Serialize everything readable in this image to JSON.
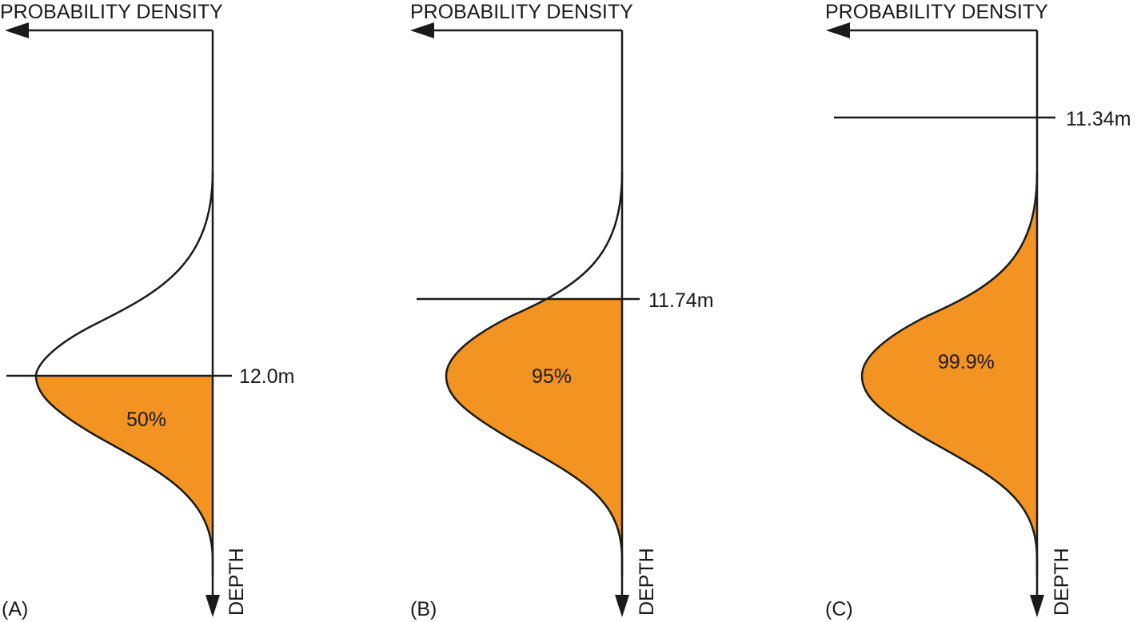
{
  "panels": [
    {
      "id": "A",
      "panel_label": "(A)",
      "x_axis_label": "PROBABILITY DENSITY",
      "y_axis_label": "DEPTH",
      "threshold_label": "12.0m",
      "shaded_label": "50%",
      "threshold_depth_m": 12.0,
      "exceedance_fraction": 0.5,
      "fill_color": "#f39322"
    },
    {
      "id": "B",
      "panel_label": "(B)",
      "x_axis_label": "PROBABILITY DENSITY",
      "y_axis_label": "DEPTH",
      "threshold_label": "11.74m",
      "shaded_label": "95%",
      "threshold_depth_m": 11.74,
      "exceedance_fraction": 0.95,
      "fill_color": "#f39322"
    },
    {
      "id": "C",
      "panel_label": "(C)",
      "x_axis_label": "PROBABILITY DENSITY",
      "y_axis_label": "DEPTH",
      "threshold_label": "11.34m",
      "shaded_label": "99.9%",
      "threshold_depth_m": 11.34,
      "exceedance_fraction": 0.999,
      "fill_color": "#f39322"
    }
  ]
}
